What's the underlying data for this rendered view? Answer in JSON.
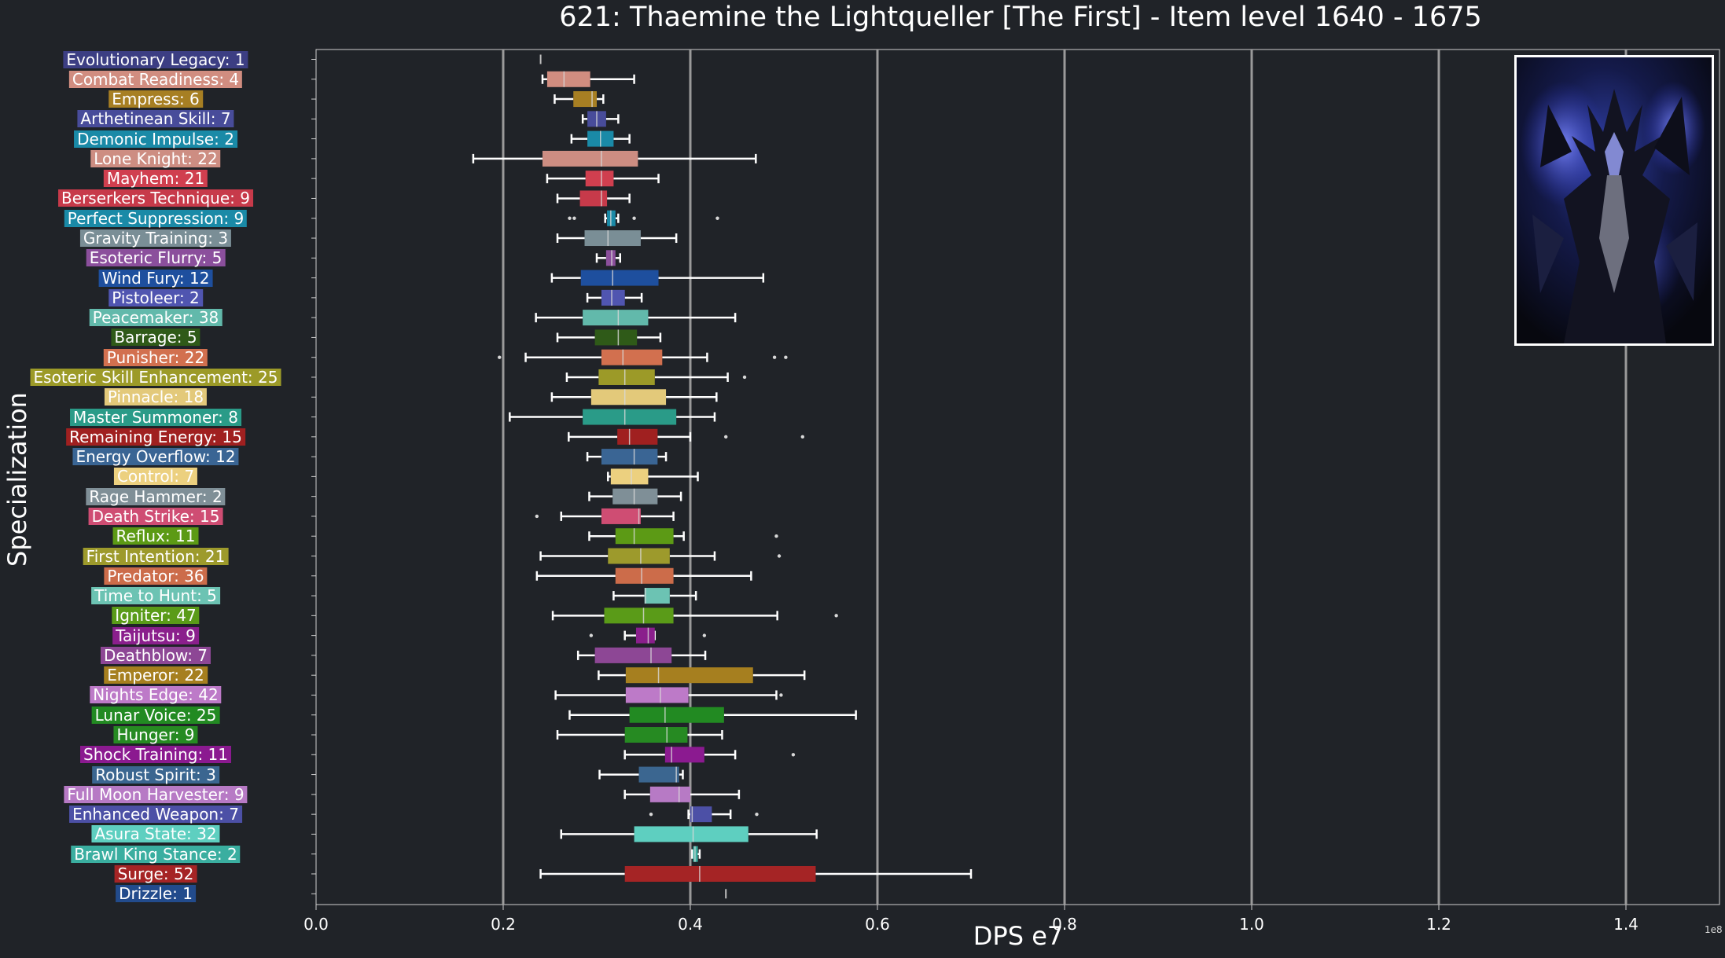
{
  "chart_data": {
    "type": "boxplot",
    "title": "621: Thaemine the Lightqueller [The First] - Item level 1640 - 1675",
    "xlabel": "DPS e7",
    "ylabel": "Specialization",
    "x_scale_note": "1e8",
    "xlim": [
      0,
      1.5
    ],
    "xticks": [
      "0.0",
      "0.2",
      "0.4",
      "0.6",
      "0.8",
      "1.0",
      "1.2",
      "1.4"
    ],
    "grid": "vertical",
    "portrait_position": "top-right",
    "categories": [
      {
        "label": "Evolutionary Legacy: 1",
        "color": "#3c3e83",
        "min": 0.24,
        "q1": 0.24,
        "median": 0.24,
        "q3": 0.24,
        "max": 0.24,
        "outliers": []
      },
      {
        "label": "Combat Readiness: 4",
        "color": "#d18d80",
        "min": 0.242,
        "q1": 0.247,
        "median": 0.265,
        "q3": 0.293,
        "max": 0.34,
        "outliers": []
      },
      {
        "label": "Empress: 6",
        "color": "#a77f23",
        "min": 0.255,
        "q1": 0.275,
        "median": 0.295,
        "q3": 0.3,
        "max": 0.307,
        "outliers": []
      },
      {
        "label": "Arthetinean Skill: 7",
        "color": "#484c9a",
        "min": 0.285,
        "q1": 0.29,
        "median": 0.3,
        "q3": 0.31,
        "max": 0.323,
        "outliers": []
      },
      {
        "label": "Demonic Impulse: 2",
        "color": "#1a8aa7",
        "min": 0.273,
        "q1": 0.29,
        "median": 0.304,
        "q3": 0.318,
        "max": 0.335,
        "outliers": []
      },
      {
        "label": "Lone Knight: 22",
        "color": "#cd8d82",
        "min": 0.168,
        "q1": 0.242,
        "median": 0.305,
        "q3": 0.344,
        "max": 0.47,
        "outliers": []
      },
      {
        "label": "Mayhem: 21",
        "color": "#d03f4f",
        "min": 0.247,
        "q1": 0.288,
        "median": 0.305,
        "q3": 0.318,
        "max": 0.366,
        "outliers": []
      },
      {
        "label": "Berserkers Technique: 9",
        "color": "#c73a4a",
        "min": 0.258,
        "q1": 0.282,
        "median": 0.305,
        "q3": 0.311,
        "max": 0.335,
        "outliers": []
      },
      {
        "label": "Perfect Suppression: 9",
        "color": "#1a8aa7",
        "min": 0.309,
        "q1": 0.311,
        "median": 0.315,
        "q3": 0.32,
        "max": 0.323,
        "outliers": [
          0.271,
          0.276,
          0.34,
          0.429
        ]
      },
      {
        "label": "Gravity Training: 3",
        "color": "#7a8e96",
        "min": 0.258,
        "q1": 0.287,
        "median": 0.312,
        "q3": 0.347,
        "max": 0.385,
        "outliers": []
      },
      {
        "label": "Esoteric Flurry: 5",
        "color": "#8b4f9c",
        "min": 0.3,
        "q1": 0.31,
        "median": 0.316,
        "q3": 0.32,
        "max": 0.325,
        "outliers": []
      },
      {
        "label": "Wind Fury: 12",
        "color": "#1e4f9e",
        "min": 0.252,
        "q1": 0.283,
        "median": 0.317,
        "q3": 0.366,
        "max": 0.478,
        "outliers": []
      },
      {
        "label": "Pistoleer: 2",
        "color": "#5055b0",
        "min": 0.29,
        "q1": 0.305,
        "median": 0.316,
        "q3": 0.33,
        "max": 0.348,
        "outliers": []
      },
      {
        "label": "Peacemaker: 38",
        "color": "#62b9ab",
        "min": 0.235,
        "q1": 0.285,
        "median": 0.323,
        "q3": 0.355,
        "max": 0.448,
        "outliers": []
      },
      {
        "label": "Barrage: 5",
        "color": "#2f5a18",
        "min": 0.258,
        "q1": 0.298,
        "median": 0.323,
        "q3": 0.343,
        "max": 0.368,
        "outliers": []
      },
      {
        "label": "Punisher: 22",
        "color": "#d2704f",
        "min": 0.224,
        "q1": 0.305,
        "median": 0.328,
        "q3": 0.37,
        "max": 0.418,
        "outliers": [
          0.196,
          0.49,
          0.502
        ]
      },
      {
        "label": "Esoteric Skill Enhancement: 25",
        "color": "#9c9a28",
        "min": 0.268,
        "q1": 0.302,
        "median": 0.33,
        "q3": 0.362,
        "max": 0.44,
        "outliers": [
          0.458
        ]
      },
      {
        "label": "Pinnacle: 18",
        "color": "#e3c97a",
        "min": 0.252,
        "q1": 0.294,
        "median": 0.33,
        "q3": 0.374,
        "max": 0.428,
        "outliers": []
      },
      {
        "label": "Master Summoner: 8",
        "color": "#2a9b88",
        "min": 0.207,
        "q1": 0.285,
        "median": 0.33,
        "q3": 0.385,
        "max": 0.426,
        "outliers": []
      },
      {
        "label": "Remaining Energy: 15",
        "color": "#a02020",
        "min": 0.27,
        "q1": 0.322,
        "median": 0.335,
        "q3": 0.365,
        "max": 0.4,
        "outliers": [
          0.438,
          0.52
        ]
      },
      {
        "label": "Energy Overflow: 12",
        "color": "#3a6594",
        "min": 0.29,
        "q1": 0.305,
        "median": 0.34,
        "q3": 0.365,
        "max": 0.374,
        "outliers": []
      },
      {
        "label": "Control: 7",
        "color": "#ecd07f",
        "min": 0.312,
        "q1": 0.315,
        "median": 0.337,
        "q3": 0.355,
        "max": 0.408,
        "outliers": []
      },
      {
        "label": "Rage Hammer: 2",
        "color": "#7f8f97",
        "min": 0.292,
        "q1": 0.317,
        "median": 0.34,
        "q3": 0.365,
        "max": 0.39,
        "outliers": []
      },
      {
        "label": "Death Strike: 15",
        "color": "#cf4d73",
        "min": 0.262,
        "q1": 0.305,
        "median": 0.345,
        "q3": 0.347,
        "max": 0.382,
        "outliers": [
          0.236
        ]
      },
      {
        "label": "Reflux: 11",
        "color": "#5c9a15",
        "min": 0.292,
        "q1": 0.32,
        "median": 0.34,
        "q3": 0.382,
        "max": 0.393,
        "outliers": [
          0.492
        ]
      },
      {
        "label": "First Intention: 21",
        "color": "#9d9a2c",
        "min": 0.24,
        "q1": 0.312,
        "median": 0.347,
        "q3": 0.378,
        "max": 0.426,
        "outliers": [
          0.495
        ]
      },
      {
        "label": "Predator: 36",
        "color": "#cc6c4a",
        "min": 0.236,
        "q1": 0.32,
        "median": 0.348,
        "q3": 0.382,
        "max": 0.465,
        "outliers": []
      },
      {
        "label": "Time to Hunt: 5",
        "color": "#6cc3b3",
        "min": 0.318,
        "q1": 0.351,
        "median": 0.352,
        "q3": 0.378,
        "max": 0.406,
        "outliers": []
      },
      {
        "label": "Igniter: 47",
        "color": "#5a9b18",
        "min": 0.253,
        "q1": 0.308,
        "median": 0.35,
        "q3": 0.382,
        "max": 0.493,
        "outliers": [
          0.556
        ]
      },
      {
        "label": "Taijutsu: 9",
        "color": "#8a1f8c",
        "min": 0.33,
        "q1": 0.342,
        "median": 0.355,
        "q3": 0.362,
        "max": 0.362,
        "outliers": [
          0.294,
          0.415
        ]
      },
      {
        "label": "Deathblow: 7",
        "color": "#8d4795",
        "min": 0.28,
        "q1": 0.298,
        "median": 0.358,
        "q3": 0.38,
        "max": 0.416,
        "outliers": []
      },
      {
        "label": "Emperor: 22",
        "color": "#a67f1f",
        "min": 0.302,
        "q1": 0.331,
        "median": 0.366,
        "q3": 0.467,
        "max": 0.522,
        "outliers": []
      },
      {
        "label": "Nights Edge: 42",
        "color": "#bd7ac8",
        "min": 0.256,
        "q1": 0.331,
        "median": 0.368,
        "q3": 0.398,
        "max": 0.492,
        "outliers": [
          0.497
        ]
      },
      {
        "label": "Lunar Voice: 25",
        "color": "#228a22",
        "min": 0.271,
        "q1": 0.335,
        "median": 0.373,
        "q3": 0.436,
        "max": 0.577,
        "outliers": []
      },
      {
        "label": "Hunger: 9",
        "color": "#268a22",
        "min": 0.258,
        "q1": 0.33,
        "median": 0.375,
        "q3": 0.397,
        "max": 0.434,
        "outliers": []
      },
      {
        "label": "Shock Training: 11",
        "color": "#8b1a90",
        "min": 0.33,
        "q1": 0.373,
        "median": 0.38,
        "q3": 0.415,
        "max": 0.448,
        "outliers": [
          0.51
        ]
      },
      {
        "label": "Robust Spirit: 3",
        "color": "#3b6690",
        "min": 0.303,
        "q1": 0.345,
        "median": 0.385,
        "q3": 0.388,
        "max": 0.392,
        "outliers": []
      },
      {
        "label": "Full Moon Harvester: 9",
        "color": "#b77ac5",
        "min": 0.33,
        "q1": 0.357,
        "median": 0.388,
        "q3": 0.4,
        "max": 0.452,
        "outliers": []
      },
      {
        "label": "Enhanced Weapon: 7",
        "color": "#4c50a6",
        "min": 0.398,
        "q1": 0.4,
        "median": 0.402,
        "q3": 0.423,
        "max": 0.443,
        "outliers": [
          0.358,
          0.471
        ]
      },
      {
        "label": "Asura State: 32",
        "color": "#5ecfc0",
        "min": 0.262,
        "q1": 0.34,
        "median": 0.403,
        "q3": 0.462,
        "max": 0.535,
        "outliers": []
      },
      {
        "label": "Brawl King Stance: 2",
        "color": "#3aaea0",
        "min": 0.402,
        "q1": 0.403,
        "median": 0.405,
        "q3": 0.408,
        "max": 0.41,
        "outliers": []
      },
      {
        "label": "Surge: 52",
        "color": "#a52425",
        "min": 0.24,
        "q1": 0.33,
        "median": 0.41,
        "q3": 0.534,
        "max": 0.7,
        "outliers": []
      },
      {
        "label": "Drizzle: 1",
        "color": "#224b8c",
        "min": 0.438,
        "q1": 0.438,
        "median": 0.438,
        "q3": 0.438,
        "max": 0.438,
        "outliers": []
      }
    ]
  },
  "colors": {
    "background": "#202328",
    "grid": "#9a9a9a",
    "axis": "#cfcfcf",
    "whisker": "#ffffff"
  }
}
